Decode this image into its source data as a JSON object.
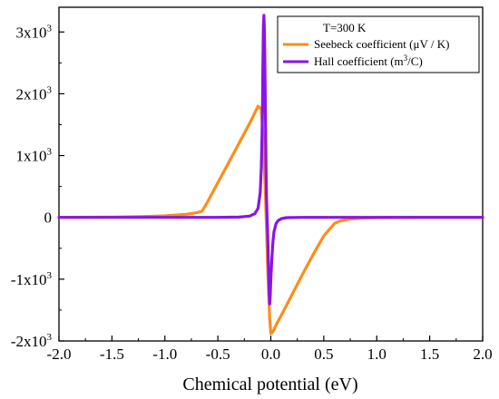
{
  "chart_data": {
    "type": "line",
    "xlabel": "Chemical potential (eV)",
    "ylabel": "",
    "xlim": [
      -2.0,
      2.0
    ],
    "ylim": [
      -2000,
      3400
    ],
    "x_ticks": [
      "-2.0",
      "-1.5",
      "-1.0",
      "-0.5",
      "0.0",
      "0.5",
      "1.0",
      "1.5",
      "2.0"
    ],
    "x_tick_values": [
      -2.0,
      -1.5,
      -1.0,
      -0.5,
      0.0,
      0.5,
      1.0,
      1.5,
      2.0
    ],
    "y_ticks": [
      {
        "value": -2000,
        "base": "-2x10",
        "exp": "3"
      },
      {
        "value": -1000,
        "base": "-1x10",
        "exp": "3"
      },
      {
        "value": 0,
        "base": "0",
        "exp": ""
      },
      {
        "value": 1000,
        "base": "1x10",
        "exp": "3"
      },
      {
        "value": 2000,
        "base": "2x10",
        "exp": "3"
      },
      {
        "value": 3000,
        "base": "3x10",
        "exp": "3"
      }
    ],
    "legend": {
      "title": "T=300 K",
      "placement": "top-right",
      "entries": [
        {
          "prefix": "Seebeck coefficient (μV / K)",
          "sup": "",
          "suffix": ""
        },
        {
          "prefix": "Hall coefficient (m",
          "sup": "3",
          "suffix": "/C)"
        }
      ]
    },
    "series": [
      {
        "name": "Seebeck coefficient (μV / K)",
        "color": "#ff8c1a",
        "x": [
          -2.0,
          -1.5,
          -1.2,
          -1.0,
          -0.8,
          -0.7,
          -0.65,
          -0.6,
          -0.5,
          -0.4,
          -0.3,
          -0.2,
          -0.12,
          -0.09,
          -0.07,
          -0.05,
          -0.03,
          -0.01,
          0.0,
          0.01,
          0.03,
          0.05,
          0.1,
          0.2,
          0.3,
          0.4,
          0.5,
          0.6,
          0.65,
          0.7,
          0.8,
          0.9,
          1.0,
          1.5,
          2.0
        ],
        "y": [
          0,
          5,
          15,
          25,
          50,
          75,
          100,
          240,
          560,
          880,
          1200,
          1520,
          1800,
          1750,
          1200,
          300,
          -800,
          -1650,
          -1880,
          -1870,
          -1820,
          -1740,
          -1580,
          -1250,
          -920,
          -600,
          -300,
          -100,
          -60,
          -40,
          -20,
          -10,
          -5,
          0,
          0
        ]
      },
      {
        "name": "Hall coefficient (m³/C)",
        "color": "#8a14e8",
        "x": [
          -2.0,
          -1.0,
          -0.5,
          -0.3,
          -0.2,
          -0.15,
          -0.12,
          -0.1,
          -0.09,
          -0.08,
          -0.075,
          -0.07,
          -0.065,
          -0.06,
          -0.055,
          -0.05,
          -0.045,
          -0.04,
          -0.035,
          -0.03,
          -0.025,
          -0.02,
          -0.015,
          -0.01,
          -0.005,
          0.0,
          0.01,
          0.02,
          0.03,
          0.05,
          0.07,
          0.1,
          0.15,
          0.3,
          1.0,
          2.0
        ],
        "y": [
          0,
          0,
          0,
          5,
          20,
          60,
          150,
          400,
          800,
          1600,
          2400,
          3100,
          3270,
          3000,
          2300,
          1500,
          800,
          300,
          0,
          -250,
          -600,
          -950,
          -1250,
          -1400,
          -1250,
          -1000,
          -650,
          -400,
          -230,
          -100,
          -50,
          -20,
          -5,
          0,
          0,
          0
        ]
      }
    ]
  }
}
